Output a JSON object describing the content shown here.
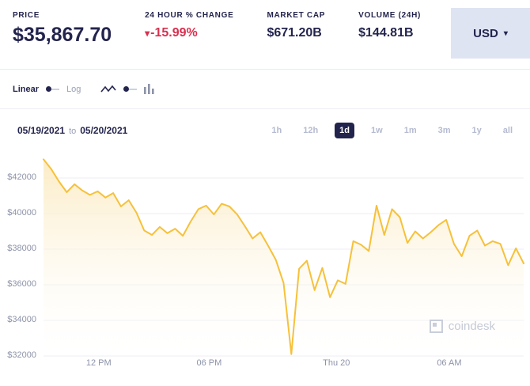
{
  "header": {
    "stats": [
      {
        "label": "PRICE",
        "value": "$35,867.70"
      },
      {
        "label": "24 HOUR % CHANGE",
        "value": "-15.99%",
        "direction": "down"
      },
      {
        "label": "MARKET CAP",
        "value": "$671.20B"
      },
      {
        "label": "VOLUME (24H)",
        "value": "$144.81B"
      }
    ],
    "down_arrow": "▾",
    "currency": "USD",
    "caret": "▾",
    "accent_navy": "#23244d",
    "change_color": "#d9304f"
  },
  "controls": {
    "scale": {
      "linear": "Linear",
      "log": "Log",
      "selected": "Linear"
    },
    "date_from": "05/19/2021",
    "to_label": "to",
    "date_to": "05/20/2021",
    "ranges": [
      "1h",
      "12h",
      "1d",
      "1w",
      "1m",
      "3m",
      "1y",
      "all"
    ],
    "selected_range": "1d"
  },
  "chart_data": {
    "type": "line",
    "ylabel": "",
    "xlabel": "",
    "ylim": [
      32000,
      43200
    ],
    "yticks": [
      32000,
      34000,
      36000,
      38000,
      40000,
      42000
    ],
    "ytick_prefix": "$",
    "grid": "horizontal",
    "xticks": [
      {
        "label": "12 PM",
        "pos": 0.115
      },
      {
        "label": "06 PM",
        "pos": 0.345
      },
      {
        "label": "Thu 20",
        "pos": 0.61
      },
      {
        "label": "06 AM",
        "pos": 0.845
      }
    ],
    "line_color": "#f6c13a",
    "fill_color": "#fbe9bc",
    "series": [
      {
        "name": "price",
        "values": [
          43050,
          42500,
          41800,
          41200,
          41650,
          41300,
          41050,
          41250,
          40900,
          41150,
          40400,
          40750,
          40050,
          39050,
          38800,
          39250,
          38900,
          39150,
          38750,
          39550,
          40250,
          40450,
          39950,
          40550,
          40400,
          39950,
          39300,
          38600,
          38950,
          38200,
          37400,
          36100,
          32100,
          36900,
          37350,
          35700,
          36950,
          35300,
          36250,
          36050,
          38450,
          38250,
          37900,
          40450,
          38800,
          40250,
          39800,
          38350,
          39000,
          38600,
          38950,
          39350,
          39650,
          38300,
          37600,
          38750,
          39050,
          38200,
          38450,
          38300,
          37100,
          38050,
          37200
        ]
      }
    ]
  },
  "watermark": {
    "text": "coindesk"
  }
}
